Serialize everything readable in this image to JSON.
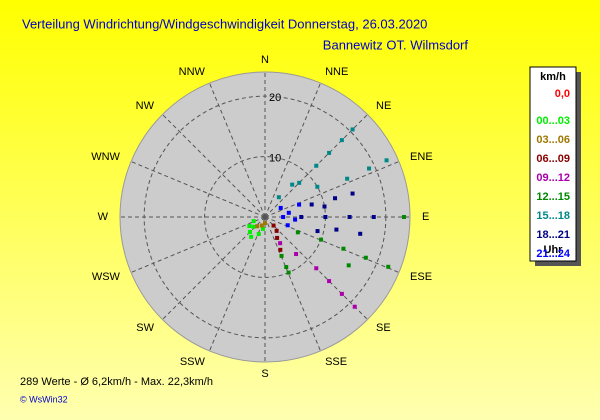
{
  "chart_data": {
    "type": "windrose",
    "title": "Verteilung Windrichtung/Windgeschwindigkeit  Donnerstag, 26.03.2020",
    "subtitle": "Bannewitz OT. Wilmsdorf",
    "directions": [
      "N",
      "NNE",
      "NE",
      "ENE",
      "E",
      "ESE",
      "SE",
      "SSE",
      "S",
      "SSW",
      "SW",
      "WSW",
      "W",
      "WNW",
      "NW",
      "NNW"
    ],
    "rlim": [
      0,
      24
    ],
    "rticks": [
      10,
      20
    ],
    "legend_title": "km/h",
    "legend_footer": "Uhr",
    "series": [
      {
        "name": "0,0",
        "color": "#ff0000",
        "x": [],
        "values": []
      },
      {
        "name": "00...03",
        "color": "#00ee00",
        "x": [
          200,
          215,
          225,
          230,
          240,
          190,
          250
        ],
        "values": [
          3,
          4,
          3.5,
          2.5,
          3,
          2,
          2
        ]
      },
      {
        "name": "03...06",
        "color": "#a07800",
        "x": [
          220,
          200,
          180
        ],
        "values": [
          2,
          1.5,
          1
        ]
      },
      {
        "name": "06...09",
        "color": "#880000",
        "x": [
          150,
          155,
          140,
          135
        ],
        "values": [
          4,
          6,
          3,
          2
        ]
      },
      {
        "name": "09...12",
        "color": "#aa00aa",
        "x": [
          135,
          135,
          135,
          135,
          140,
          150
        ],
        "values": [
          12,
          15,
          18,
          21,
          8,
          5
        ]
      },
      {
        "name": "12...15",
        "color": "#008800",
        "x": [
          157,
          157,
          157,
          112,
          112,
          112,
          112,
          90,
          120,
          115
        ],
        "values": [
          7,
          9,
          10,
          10,
          14,
          18,
          22,
          23,
          16,
          6
        ]
      },
      {
        "name": "15...18",
        "color": "#008888",
        "x": [
          45,
          45,
          45,
          45,
          45,
          40,
          35,
          65,
          65,
          65,
          60
        ],
        "values": [
          8,
          12,
          15,
          18,
          20.5,
          7,
          4,
          15,
          19,
          22.2,
          10
        ]
      },
      {
        "name": "18...21",
        "color": "#000088",
        "x": [
          75,
          75,
          75,
          80,
          90,
          90,
          90,
          90,
          100,
          100,
          105
        ],
        "values": [
          8,
          12,
          15,
          10,
          6,
          10,
          14,
          18,
          12,
          16,
          9
        ]
      },
      {
        "name": "21...24",
        "color": "#0000ff",
        "x": [
          90,
          95,
          80,
          70,
          110,
          60
        ],
        "values": [
          3,
          5,
          4,
          6,
          4,
          3
        ]
      }
    ],
    "footer": "289 Werte   -   Ø 6,2km/h  -  Max. 22,3km/h",
    "copyright": "© WsWin32"
  }
}
